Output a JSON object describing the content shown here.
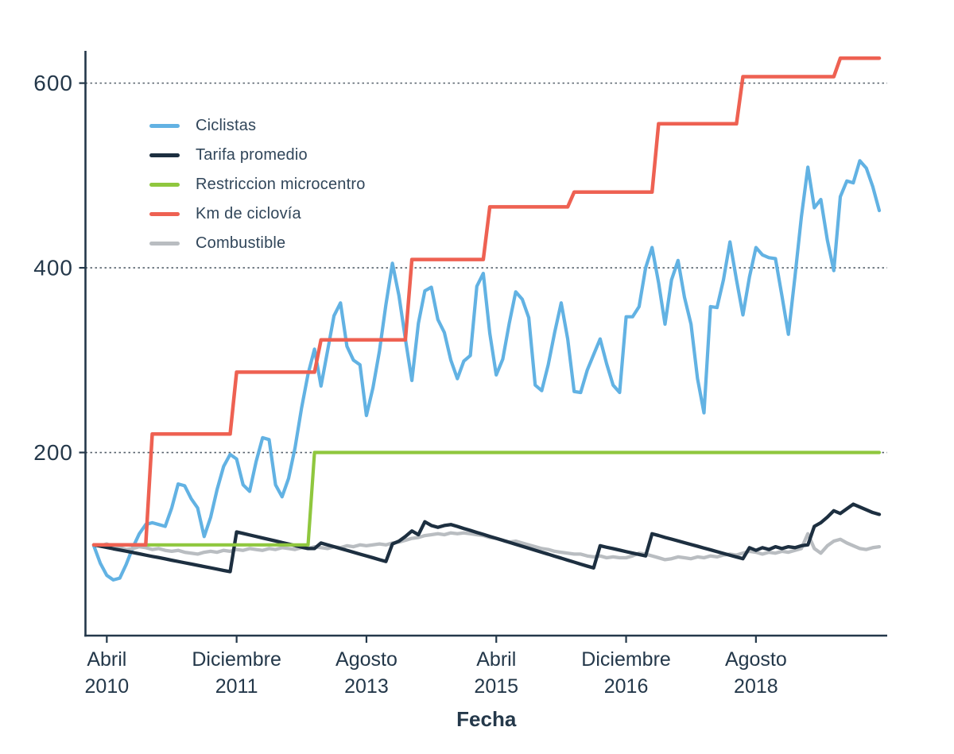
{
  "chart_data": {
    "type": "line",
    "title": "",
    "xlabel": "Fecha",
    "ylabel": "",
    "grid": "horizontal-dashed",
    "legend_position": "upper-left-inside",
    "ylim": [
      0,
      650
    ],
    "yticks": [
      200,
      400,
      600
    ],
    "x_unit": "months since Feb 2010",
    "x_range": [
      0,
      121
    ],
    "xticks": [
      {
        "m": 2,
        "line1": "Abril",
        "line2": "2010"
      },
      {
        "m": 22,
        "line1": "Diciembre",
        "line2": "2011"
      },
      {
        "m": 42,
        "line1": "Agosto",
        "line2": "2013"
      },
      {
        "m": 62,
        "line1": "Abril",
        "line2": "2015"
      },
      {
        "m": 82,
        "line1": "Diciembre",
        "line2": "2016"
      },
      {
        "m": 102,
        "line1": "Agosto",
        "line2": "2018"
      }
    ],
    "colors": {
      "axis": "#24384a",
      "tick_text": "#24384a",
      "grid": "#55606b",
      "legend_text": "#31465a"
    },
    "series": [
      {
        "name": "Ciclistas",
        "color": "#62b2e3",
        "width": 4.2,
        "values": [
          99,
          80,
          67,
          62,
          64,
          79,
          97,
          112,
          122,
          124,
          122,
          120,
          140,
          166,
          164,
          150,
          140,
          109,
          130,
          160,
          185,
          198,
          193,
          165,
          158,
          190,
          216,
          214,
          165,
          152,
          172,
          205,
          248,
          285,
          312,
          272,
          310,
          348,
          362,
          315,
          300,
          295,
          240,
          270,
          310,
          360,
          405,
          370,
          323,
          278,
          340,
          375,
          379,
          344,
          330,
          300,
          280,
          299,
          305,
          380,
          394,
          329,
          284,
          301,
          340,
          374,
          366,
          346,
          273,
          267,
          295,
          330,
          362,
          323,
          266,
          265,
          289,
          306,
          323,
          296,
          273,
          265,
          347,
          347,
          358,
          400,
          422,
          384,
          339,
          387,
          408,
          368,
          339,
          280,
          243,
          358,
          357,
          387,
          428,
          387,
          349,
          390,
          422,
          414,
          411,
          410,
          370,
          328,
          390,
          455,
          509,
          465,
          474,
          430,
          397,
          477,
          494,
          492,
          516,
          508,
          488,
          462
        ]
      },
      {
        "name": "Tarifa promedio",
        "color": "#1d2f40",
        "width": 4.3,
        "values": [
          100,
          98.6,
          97.2,
          95.8,
          94.5,
          93.1,
          91.7,
          90.3,
          88.9,
          87.5,
          86.2,
          84.8,
          83.4,
          82,
          80.6,
          79.2,
          77.9,
          76.5,
          75.1,
          73.7,
          72.3,
          71,
          114,
          112.4,
          110.7,
          109.1,
          107.5,
          105.8,
          104.2,
          102.5,
          100.9,
          99.3,
          97.6,
          96,
          96,
          102,
          100,
          98,
          96,
          94,
          92,
          90,
          88,
          86,
          84,
          82,
          101,
          104,
          109,
          115,
          111,
          125,
          121,
          119,
          121,
          122,
          119.9,
          117.7,
          115.6,
          113.4,
          111.3,
          109.1,
          107,
          104.9,
          102.7,
          100.6,
          98.4,
          96.3,
          94.1,
          92,
          89.9,
          87.7,
          85.6,
          83.4,
          81.3,
          79.1,
          77,
          75,
          99,
          97.4,
          95.9,
          94.3,
          92.7,
          91.1,
          89.6,
          88,
          112,
          110.1,
          108.1,
          106.2,
          104.3,
          102.3,
          100.4,
          98.5,
          96.5,
          94.6,
          92.7,
          90.7,
          88.8,
          86.9,
          85,
          97,
          94,
          97,
          95,
          98,
          96,
          98,
          97,
          99,
          100,
          120,
          124,
          130,
          137,
          134,
          139,
          144,
          141,
          138,
          135,
          133
        ]
      },
      {
        "name": "Restriccion microcentro",
        "color": "#8fc73e",
        "width": 4.2,
        "values": [
          100,
          100,
          100,
          100,
          100,
          100,
          100,
          100,
          100,
          100,
          100,
          100,
          100,
          100,
          100,
          100,
          100,
          100,
          100,
          100,
          100,
          100,
          100,
          100,
          100,
          100,
          100,
          100,
          100,
          100,
          100,
          100,
          100,
          100,
          200,
          200,
          200,
          200,
          200,
          200,
          200,
          200,
          200,
          200,
          200,
          200,
          200,
          200,
          200,
          200,
          200,
          200,
          200,
          200,
          200,
          200,
          200,
          200,
          200,
          200,
          200,
          200,
          200,
          200,
          200,
          200,
          200,
          200,
          200,
          200,
          200,
          200,
          200,
          200,
          200,
          200,
          200,
          200,
          200,
          200,
          200,
          200,
          200,
          200,
          200,
          200,
          200,
          200,
          200,
          200,
          200,
          200,
          200,
          200,
          200,
          200,
          200,
          200,
          200,
          200,
          200,
          200,
          200,
          200,
          200,
          200,
          200,
          200,
          200,
          200,
          200,
          200,
          200,
          200,
          200,
          200,
          200,
          200,
          200,
          200,
          200,
          200
        ]
      },
      {
        "name": "Km de ciclovía",
        "color": "#ee6152",
        "width": 4.5,
        "values": [
          100,
          100,
          100,
          100,
          100,
          100,
          100,
          100,
          100,
          220,
          220,
          220,
          220,
          220,
          220,
          220,
          220,
          220,
          220,
          220,
          220,
          220,
          287,
          287,
          287,
          287,
          287,
          287,
          287,
          287,
          287,
          287,
          287,
          287,
          287,
          322,
          322,
          322,
          322,
          322,
          322,
          322,
          322,
          322,
          322,
          322,
          322,
          322,
          322,
          409,
          409,
          409,
          409,
          409,
          409,
          409,
          409,
          409,
          409,
          409,
          409,
          466,
          466,
          466,
          466,
          466,
          466,
          466,
          466,
          466,
          466,
          466,
          466,
          466,
          482,
          482,
          482,
          482,
          482,
          482,
          482,
          482,
          482,
          482,
          482,
          482,
          482,
          556,
          556,
          556,
          556,
          556,
          556,
          556,
          556,
          556,
          556,
          556,
          556,
          556,
          607,
          607,
          607,
          607,
          607,
          607,
          607,
          607,
          607,
          607,
          607,
          607,
          607,
          607,
          607,
          627,
          627,
          627,
          627,
          627,
          627,
          627
        ]
      },
      {
        "name": "Combustible",
        "color": "#b9bdc1",
        "width": 4.3,
        "values": [
          100,
          99,
          101,
          98,
          97,
          95,
          96,
          98,
          97,
          95,
          96,
          94,
          93,
          94,
          92,
          91,
          90,
          92,
          93,
          92,
          94,
          93,
          95,
          94,
          96,
          95,
          94,
          96,
          95,
          97,
          96,
          95,
          97,
          96,
          98,
          97,
          96,
          98,
          97,
          99,
          98,
          100,
          99,
          100,
          101,
          100,
          102,
          103,
          105,
          107,
          108,
          110,
          111,
          112,
          111,
          113,
          112,
          113,
          112,
          111,
          110,
          108,
          107,
          105,
          103,
          104,
          102,
          100,
          98,
          96,
          95,
          93,
          92,
          91,
          90,
          90,
          88,
          87,
          88,
          86,
          87,
          86,
          86,
          88,
          91,
          90,
          88,
          86,
          84,
          85,
          87,
          86,
          85,
          87,
          86,
          88,
          87,
          89,
          90,
          89,
          91,
          93,
          92,
          90,
          92,
          91,
          93,
          92,
          94,
          96,
          112,
          96,
          91,
          99,
          104,
          106,
          102,
          99,
          96,
          95,
          97,
          98
        ]
      }
    ]
  }
}
